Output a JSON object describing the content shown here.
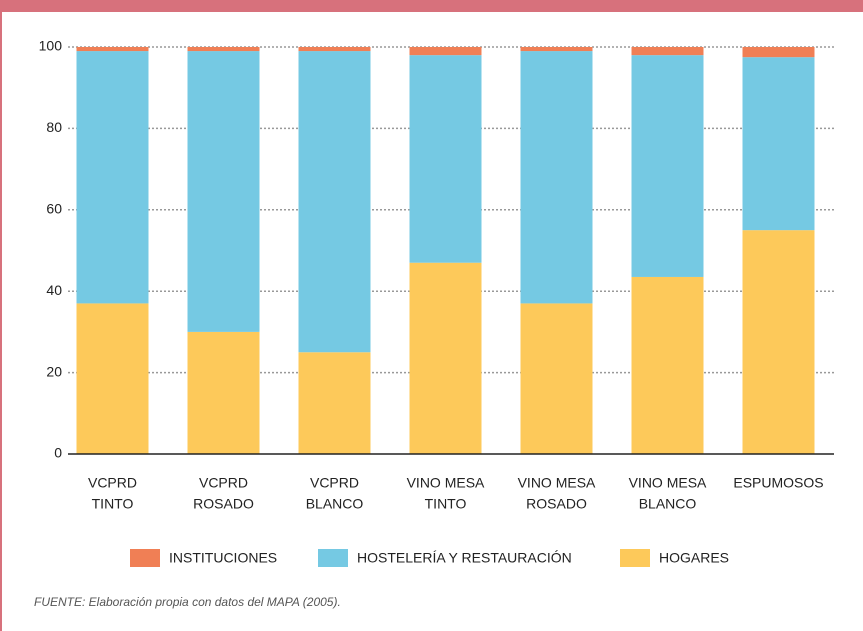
{
  "chart_data": {
    "type": "stacked_bar",
    "categories": [
      [
        "VCPRD",
        "TINTO"
      ],
      [
        "VCPRD",
        "ROSADO"
      ],
      [
        "VCPRD",
        "BLANCO"
      ],
      [
        "VINO MESA",
        "TINTO"
      ],
      [
        "VINO MESA",
        "ROSADO"
      ],
      [
        "VINO MESA",
        "BLANCO"
      ],
      [
        "ESPUMOSOS"
      ]
    ],
    "series": [
      {
        "name": "HOGARES",
        "color": "#fdc95a",
        "values": [
          37,
          30,
          25,
          47,
          37,
          43.5,
          55
        ]
      },
      {
        "name": "HOSTELERÍA Y RESTAURACIÓN",
        "color": "#75c9e3",
        "values": [
          62,
          69,
          74,
          51,
          62,
          54.5,
          42.5
        ]
      },
      {
        "name": "INSTITUCIONES",
        "color": "#f07f55",
        "values": [
          1,
          1,
          1,
          2,
          1,
          2,
          2.5
        ]
      }
    ],
    "legend_order": [
      2,
      1,
      0
    ],
    "ylim": [
      0,
      100
    ],
    "yticks": [
      0,
      20,
      40,
      60,
      80,
      100
    ],
    "grid": true,
    "source": "FUENTE: Elaboración propia con datos del MAPA (2005)."
  }
}
